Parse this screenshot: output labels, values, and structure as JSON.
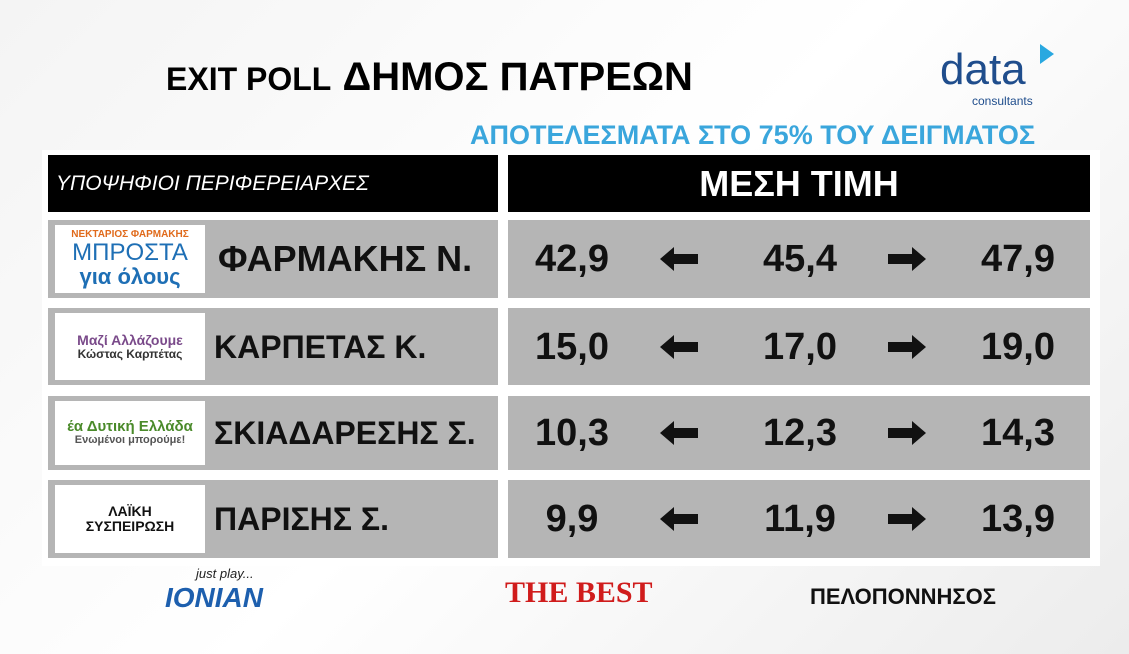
{
  "header": {
    "title_prefix": "EXIT POLL",
    "title": "ΔΗΜΟΣ ΠΑΤΡΕΩΝ",
    "subtitle": "ΑΠΟΤΕΛΕΣΜΑΤΑ ΣΤΟ 75% ΤΟΥ ΔΕΙΓΜΑΤΟΣ",
    "logo": {
      "brand": "data",
      "tagline": "consultants"
    }
  },
  "table": {
    "columns": [
      "ΥΠΟΨΗΦΙΟΙ ΠΕΡΙΦΕΡΕΙΑΡΧΕΣ",
      "ΜΕΣΗ ΤΙΜΗ"
    ],
    "rows": [
      {
        "logo_text": [
          "ΝΕΚΤΑΡΙΟΣ ΦΑΡΜΑΚΗΣ",
          "ΜΠΡΟΣΤΑ",
          "για όλους"
        ],
        "name": "ΦΑΡΜΑΚΗΣ Ν.",
        "low": "42,9",
        "mid": "45,4",
        "high": "47,9"
      },
      {
        "logo_text": [
          "Μαζί Αλλάζουμε",
          "Κώστας Καρπέτας"
        ],
        "name": "ΚΑΡΠΕΤΑΣ Κ.",
        "low": "15,0",
        "mid": "17,0",
        "high": "19,0"
      },
      {
        "logo_text": [
          "έα Δυτική Ελλάδα",
          "Ενωμένοι μπορούμε!"
        ],
        "name": "ΣΚΙΑΔΑΡΕΣΗΣ Σ.",
        "low": "10,3",
        "mid": "12,3",
        "high": "14,3"
      },
      {
        "logo_text": [
          "ΛΑΪΚΗ",
          "ΣΥΣΠΕΙΡΩΣΗ"
        ],
        "name": "ΠΑΡΙΣΗΣ Σ.",
        "low": "9,9",
        "mid": "11,9",
        "high": "13,9"
      }
    ]
  },
  "footer": {
    "sponsors": [
      "just play...",
      "IONIAN",
      "THE BEST",
      "ΠΕΛΟΠΟΝΝΗΣΟΣ"
    ]
  }
}
